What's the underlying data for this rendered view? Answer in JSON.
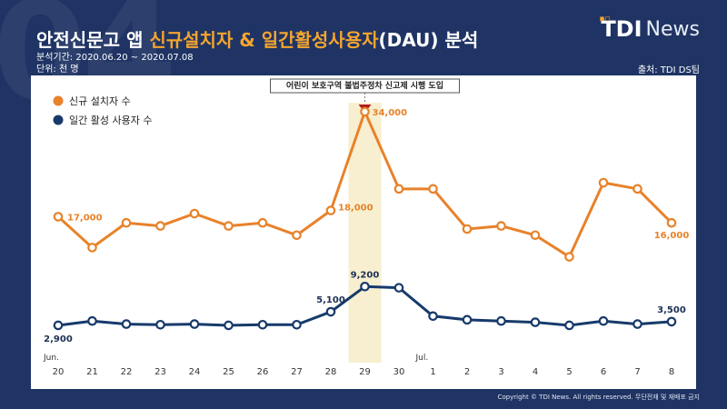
{
  "background_number": "04",
  "title": {
    "main": "안전신문고 앱",
    "accent": "신규설치자 & 일간활성사용자",
    "suffix": "(DAU) 분석"
  },
  "period": "분석기간: 2020.06.20 ~ 2020.07.08",
  "unit": "단위: 천 명",
  "logo": {
    "tdi": "TDI",
    "news": "News"
  },
  "source": "출처: TDI DS팀",
  "copyright": "Copyright © TDI News. All rights reserved. 무단전재 및 재배포 금지",
  "colors": {
    "orange": "#e8822a",
    "navy": "#173a6b",
    "highlight": "#f7efcf",
    "marker": "#b21d1d"
  },
  "chart_data": {
    "type": "line",
    "annotation": "어린이 보호구역 불법주정차 신고제 시행 도입",
    "highlight_category": "29",
    "month_labels": [
      {
        "at": "20",
        "label": "Jun."
      },
      {
        "at": "1",
        "label": "Jul."
      }
    ],
    "categories": [
      "20",
      "21",
      "22",
      "23",
      "24",
      "25",
      "26",
      "27",
      "28",
      "29",
      "30",
      "1",
      "2",
      "3",
      "4",
      "5",
      "6",
      "7",
      "8"
    ],
    "series": [
      {
        "name": "신규 설치자 수",
        "color": "#e8822a",
        "values": [
          17000,
          12000,
          16000,
          15500,
          17500,
          15500,
          16000,
          14000,
          18000,
          34000,
          21500,
          21500,
          15000,
          15500,
          14000,
          10500,
          22500,
          21500,
          16000
        ],
        "labels": {
          "0": "17,000",
          "8": "18,000",
          "9": "34,000",
          "18": "16,000"
        }
      },
      {
        "name": "일간 활성 사용자 수",
        "color": "#173a6b",
        "values": [
          2900,
          3600,
          3100,
          3000,
          3100,
          2900,
          3000,
          3000,
          5100,
          9200,
          9000,
          4400,
          3800,
          3600,
          3400,
          2900,
          3600,
          3100,
          3500
        ],
        "labels": {
          "0": "2,900",
          "8": "5,100",
          "9": "9,200",
          "18": "3,500"
        }
      }
    ]
  }
}
